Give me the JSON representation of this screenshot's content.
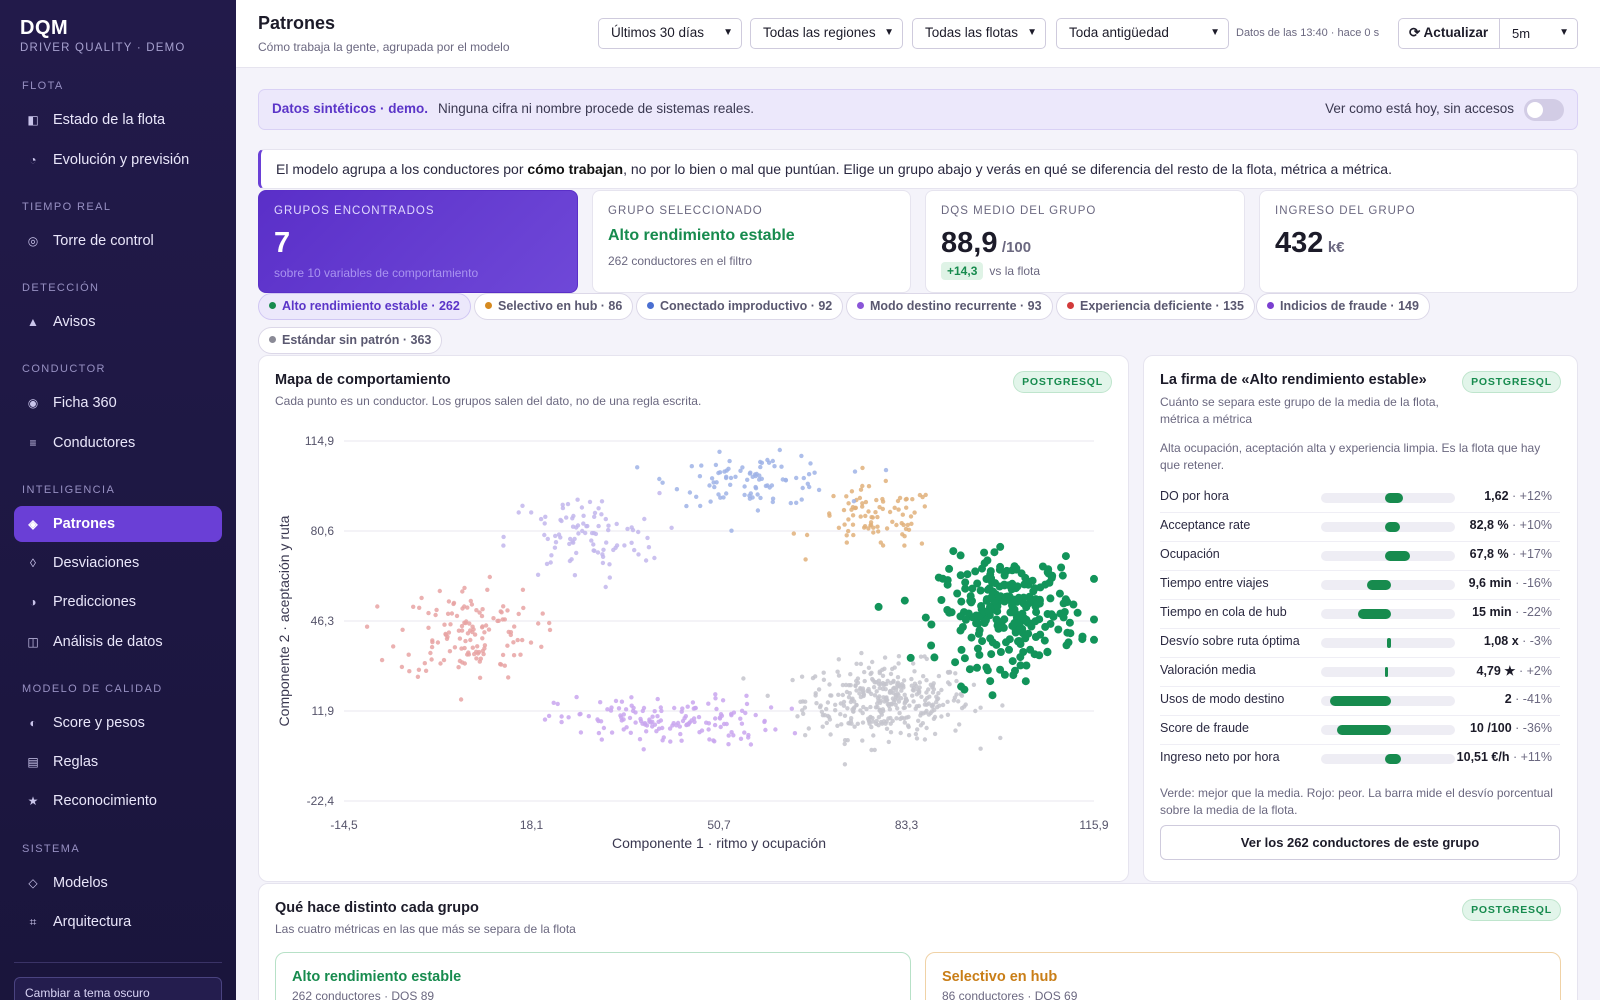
{
  "app": {
    "name": "DQM",
    "subtitle": "DRIVER QUALITY · DEMO"
  },
  "sidebar": {
    "sections": [
      {
        "title": "FLOTA"
      },
      {
        "title": "TIEMPO REAL"
      },
      {
        "title": "DETECCIÓN"
      },
      {
        "title": "CONDUCTOR"
      },
      {
        "title": "INTELIGENCIA"
      },
      {
        "title": "MODELO DE CALIDAD"
      },
      {
        "title": "SISTEMA"
      }
    ],
    "items": [
      {
        "label": "Estado de la flota",
        "icon": "fleet-status-icon",
        "glyph": "◧"
      },
      {
        "label": "Evolución y previsión",
        "icon": "forecast-icon",
        "glyph": "◔"
      },
      {
        "label": "Torre de control",
        "icon": "control-tower-icon",
        "glyph": "◎"
      },
      {
        "label": "Avisos",
        "icon": "alert-icon",
        "glyph": "▲"
      },
      {
        "label": "Ficha 360",
        "icon": "profile-360-icon",
        "glyph": "◉"
      },
      {
        "label": "Conductores",
        "icon": "list-icon",
        "glyph": "≡"
      },
      {
        "label": "Patrones",
        "icon": "patterns-icon",
        "glyph": "◈"
      },
      {
        "label": "Desviaciones",
        "icon": "deviation-icon",
        "glyph": "◊"
      },
      {
        "label": "Predicciones",
        "icon": "prediction-icon",
        "glyph": "◑"
      },
      {
        "label": "Análisis de datos",
        "icon": "data-analysis-icon",
        "glyph": "◫"
      },
      {
        "label": "Score y pesos",
        "icon": "score-icon",
        "glyph": "◐"
      },
      {
        "label": "Reglas",
        "icon": "rules-icon",
        "glyph": "▤"
      },
      {
        "label": "Reconocimiento",
        "icon": "star-icon",
        "glyph": "★"
      },
      {
        "label": "Modelos",
        "icon": "models-icon",
        "glyph": "◇"
      },
      {
        "label": "Arquitectura",
        "icon": "architecture-icon",
        "glyph": "⌗"
      }
    ],
    "active": "Patrones",
    "theme_button": "Cambiar a tema oscuro"
  },
  "header": {
    "title": "Patrones",
    "subtitle": "Cómo trabaja la gente, agrupada por el modelo",
    "filters": {
      "period": "Últimos 30 días",
      "region": "Todas las regiones",
      "fleet": "Todas las flotas",
      "seniority": "Toda antigüedad"
    },
    "status": "Datos de las 13:40 · hace 0 s",
    "refresh_label": "⟳  Actualizar",
    "interval": "5m"
  },
  "banner": {
    "strong": "Datos sintéticos · demo.",
    "text": "Ninguna cifra ni nombre procede de sistemas reales.",
    "toggle_label": "Ver como está hoy, sin accesos"
  },
  "intro": {
    "pre": "El modelo agrupa a los conductores por ",
    "strong": "cómo trabajan",
    "post": ", no por lo bien o mal que puntúan. Elige un grupo abajo y verás en qué se diferencia del resto de la flota, métrica a métrica."
  },
  "kpis": {
    "groups": {
      "label": "GRUPOS ENCONTRADOS",
      "value": "7",
      "note": "sobre 10 variables de comportamiento"
    },
    "selected": {
      "label": "GRUPO SELECCIONADO",
      "value": "Alto rendimiento estable",
      "note": "262 conductores en el filtro"
    },
    "dqs": {
      "label": "DQS MEDIO DEL GRUPO",
      "value": "88,9",
      "unit": "/100",
      "delta": "+14,3",
      "delta_note": "vs la flota"
    },
    "income": {
      "label": "INGRESO DEL GRUPO",
      "value": "432",
      "unit": "k€"
    }
  },
  "chips": [
    {
      "label": "Alto rendimiento estable · 262",
      "color": "#178b4e"
    },
    {
      "label": "Selectivo en hub · 86",
      "color": "#d68a1f"
    },
    {
      "label": "Conectado improductivo · 92",
      "color": "#4a6fd1"
    },
    {
      "label": "Modo destino recurrente · 93",
      "color": "#8a55d8"
    },
    {
      "label": "Experiencia deficiente · 135",
      "color": "#d23a3a"
    },
    {
      "label": "Indicios de fraude · 149",
      "color": "#7a3fd0"
    },
    {
      "label": "Estándar sin patrón · 363",
      "color": "#8a8a96"
    }
  ],
  "scatter_card": {
    "title": "Mapa de comportamiento",
    "subtitle": "Cada punto es un conductor. Los grupos salen del dato, no de una regla escrita.",
    "badge": "POSTGRESQL"
  },
  "chart_data": {
    "type": "scatter",
    "xlabel": "Componente 1 · ritmo y ocupación",
    "ylabel": "Componente 2 · aceptación y ruta",
    "x_ticks": [
      "-14,5",
      "18,1",
      "50,7",
      "83,3",
      "115,9"
    ],
    "y_ticks": [
      "114,9",
      "80,6",
      "46,3",
      "11,9",
      "-22,4"
    ],
    "xlim": [
      -14.5,
      115.9
    ],
    "ylim": [
      -22.4,
      114.9
    ],
    "grid": true,
    "series": [
      {
        "name": "Alto rendimiento estable",
        "color": "#12945a",
        "count": 262,
        "center": [
          101,
          50
        ],
        "spread": [
          10,
          17
        ]
      },
      {
        "name": "Selectivo en hub",
        "color": "#e0b07a",
        "count": 86,
        "center": [
          78,
          85
        ],
        "spread": [
          9,
          10
        ]
      },
      {
        "name": "Conectado improductivo",
        "color": "#9fb3e6",
        "count": 92,
        "center": [
          57,
          100
        ],
        "spread": [
          12,
          8
        ]
      },
      {
        "name": "Modo destino recurrente",
        "color": "#c2b6ec",
        "count": 93,
        "center": [
          27,
          78
        ],
        "spread": [
          11,
          14
        ]
      },
      {
        "name": "Experiencia deficiente",
        "color": "#e8a3a3",
        "count": 135,
        "center": [
          7,
          42
        ],
        "spread": [
          10,
          15
        ]
      },
      {
        "name": "Indicios de fraude",
        "color": "#c9a6ee",
        "count": 149,
        "center": [
          42,
          8
        ],
        "spread": [
          16,
          8
        ]
      },
      {
        "name": "Estándar sin patrón",
        "color": "#c4c4cc",
        "count": 363,
        "center": [
          80,
          16
        ],
        "spread": [
          12,
          12
        ]
      }
    ]
  },
  "signature": {
    "title": "La firma de «Alto rendimiento estable»",
    "subtitle": "Cuánto se separa este grupo de la media de la flota, métrica a métrica",
    "description": "Alta ocupación, aceptación alta y experiencia limpia. Es la flota que hay que retener.",
    "badge": "POSTGRESQL",
    "metrics": [
      {
        "name": "DO por hora",
        "value": "1,62",
        "pct": " · +12%",
        "dev": 12
      },
      {
        "name": "Acceptance rate",
        "value": "82,8 %",
        "pct": " · +10%",
        "dev": 10
      },
      {
        "name": "Ocupación",
        "value": "67,8 %",
        "pct": " · +17%",
        "dev": 17
      },
      {
        "name": "Tiempo entre viajes",
        "value": "9,6 min",
        "pct": " · -16%",
        "dev": -16
      },
      {
        "name": "Tiempo en cola de hub",
        "value": "15 min",
        "pct": " · -22%",
        "dev": -22
      },
      {
        "name": "Desvío sobre ruta óptima",
        "value": "1,08 x",
        "pct": " · -3%",
        "dev": -3
      },
      {
        "name": "Valoración media",
        "value": "4,79 ★",
        "pct": " · +2%",
        "dev": 2
      },
      {
        "name": "Usos de modo destino",
        "value": "2",
        "pct": " · -41%",
        "dev": -41
      },
      {
        "name": "Score de fraude",
        "value": "10 /100",
        "pct": " · -36%",
        "dev": -36
      },
      {
        "name": "Ingreso neto por hora",
        "value": "10,51 €/h",
        "pct": " · +11%",
        "dev": 11
      }
    ],
    "note": "Verde: mejor que la media. Rojo: peor. La barra mide el desvío porcentual sobre la media de la flota.",
    "cta": "Ver los 262 conductores de este grupo"
  },
  "differences": {
    "title": "Qué hace distinto cada grupo",
    "subtitle": "Las cuatro métricas en las que más se separa de la flota",
    "badge": "POSTGRESQL",
    "groups": [
      {
        "title": "Alto rendimiento estable",
        "sub": "262 conductores · DQS 89",
        "color": "#178b4e"
      },
      {
        "title": "Selectivo en hub",
        "sub": "86 conductores · DQS 69",
        "color": "#c97e17"
      }
    ]
  }
}
